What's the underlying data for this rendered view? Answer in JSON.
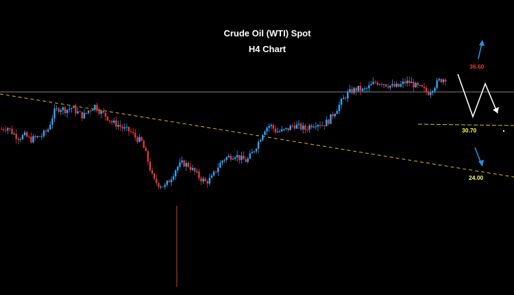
{
  "chart_data": {
    "type": "candlestick",
    "title": "Crude Oil (WTI) Spot",
    "subtitle": "H4 Chart",
    "colors": {
      "background": "#000000",
      "bull_candle": "#2ea8ff",
      "bear_candle": "#e83a3a",
      "resistance_line": "#b0b0b0",
      "trendline": "#e6c300",
      "support_line": "#e6c300",
      "projection": "#ffffff",
      "arrow": "#1e96e6",
      "target_label": "#e23b3b",
      "level_label": "#ffff55"
    },
    "price_path": [
      39,
      39.5,
      38,
      37,
      37.5,
      36.5,
      37,
      37.5,
      39,
      43,
      44,
      43.5,
      44,
      43,
      42,
      43.5,
      44.5,
      43,
      42,
      40.5,
      40,
      39,
      38.5,
      37,
      36,
      32,
      27,
      26,
      25.5,
      27.5,
      30,
      31,
      30.5,
      29,
      27.5,
      26.5,
      27.5,
      30,
      32,
      32.5,
      33,
      32,
      31.5,
      33.5,
      36,
      39,
      40,
      38.5,
      38.5,
      39,
      40,
      39.5,
      39,
      40,
      40.5,
      40,
      41,
      43,
      45,
      47,
      48,
      48.5,
      48,
      49,
      50,
      50,
      49.5,
      49,
      49,
      50,
      50,
      49,
      48.5,
      47.5,
      49,
      50.5,
      51
    ],
    "level_labels": {
      "upper_target": "36.60",
      "level_1": "30.70",
      "level_2": "24.00"
    },
    "annotations": [
      "36.60",
      "30.70",
      "24.00"
    ]
  }
}
